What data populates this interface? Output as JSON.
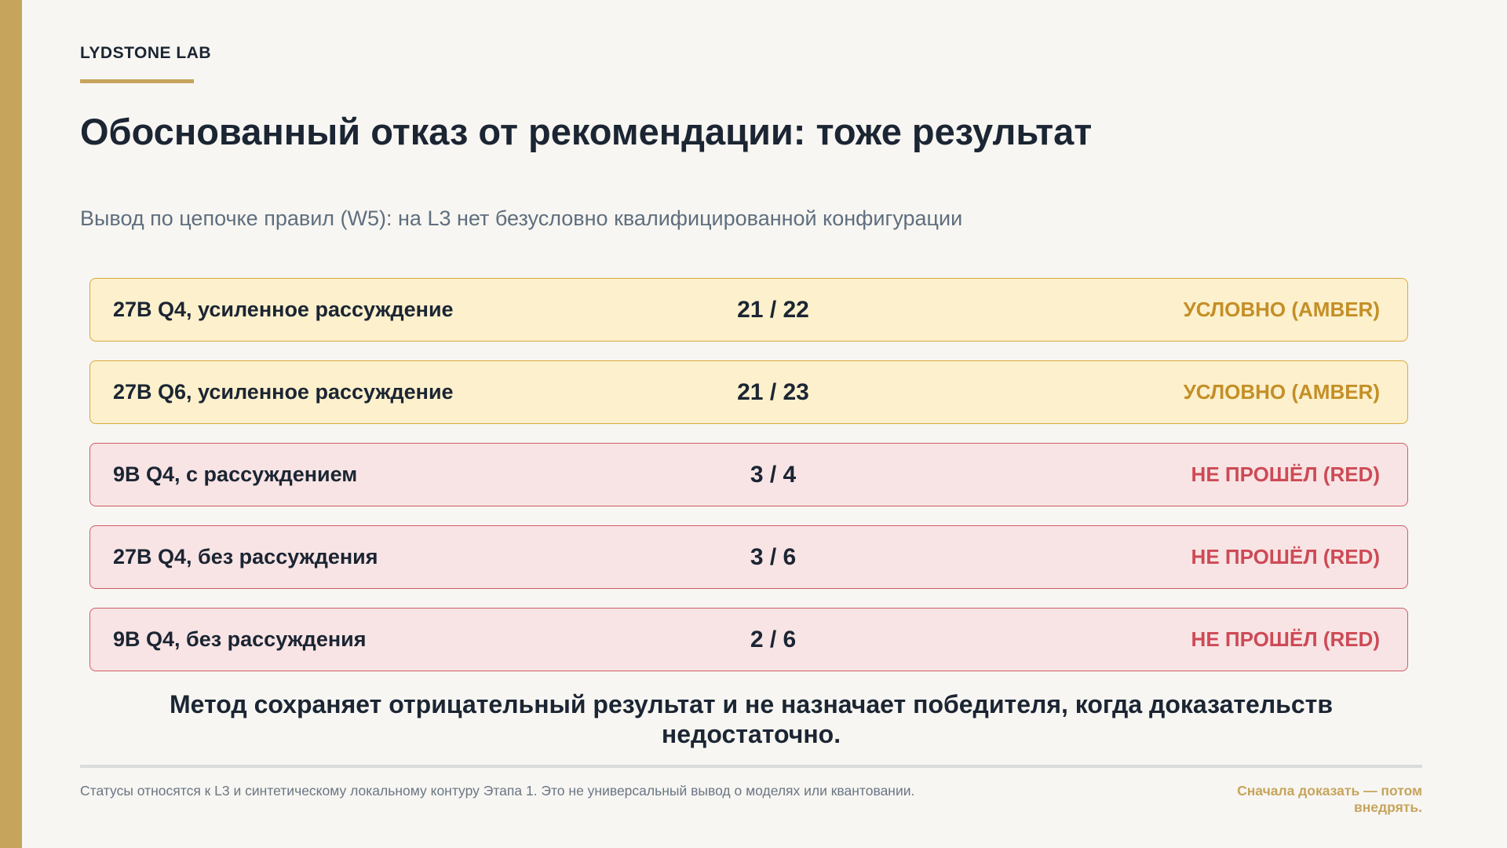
{
  "brand": "LYDSTONE LAB",
  "title": "Обоснованный отказ от рекомендации: тоже результат",
  "subtitle": "Вывод по цепочке правил (W5): на L3 нет безусловно квалифицированной конфигурации",
  "rows": [
    {
      "label": "27B Q4, усиленное рассуждение",
      "score": "21 / 22",
      "status": "УСЛОВНО (AMBER)",
      "level": "amber"
    },
    {
      "label": "27B Q6, усиленное рассуждение",
      "score": "21 / 23",
      "status": "УСЛОВНО (AMBER)",
      "level": "amber"
    },
    {
      "label": "9B Q4, с рассуждением",
      "score": "3 / 4",
      "status": "НЕ ПРОШЁЛ (RED)",
      "level": "red"
    },
    {
      "label": "27B Q4, без рассуждения",
      "score": "3 / 6",
      "status": "НЕ ПРОШЁЛ (RED)",
      "level": "red"
    },
    {
      "label": "9B Q4, без рассуждения",
      "score": "2 / 6",
      "status": "НЕ ПРОШЁЛ (RED)",
      "level": "red"
    }
  ],
  "conclusion": "Метод сохраняет отрицательный результат и не назначает победителя, когда доказательств недостаточно.",
  "footnote": "Статусы относятся к L3 и синтетическому локальному контуру Этапа 1. Это не универсальный вывод о моделях или квантовании.",
  "tagline": "Сначала доказать — потом внедрять.",
  "colors": {
    "accent": "#c6a45c",
    "amber_bg": "#fdf0cc",
    "amber_border": "#d9a83c",
    "amber_text": "#c48f27",
    "red_bg": "#f8e4e4",
    "red_border": "#cf5c66",
    "red_text": "#cd4a56"
  }
}
